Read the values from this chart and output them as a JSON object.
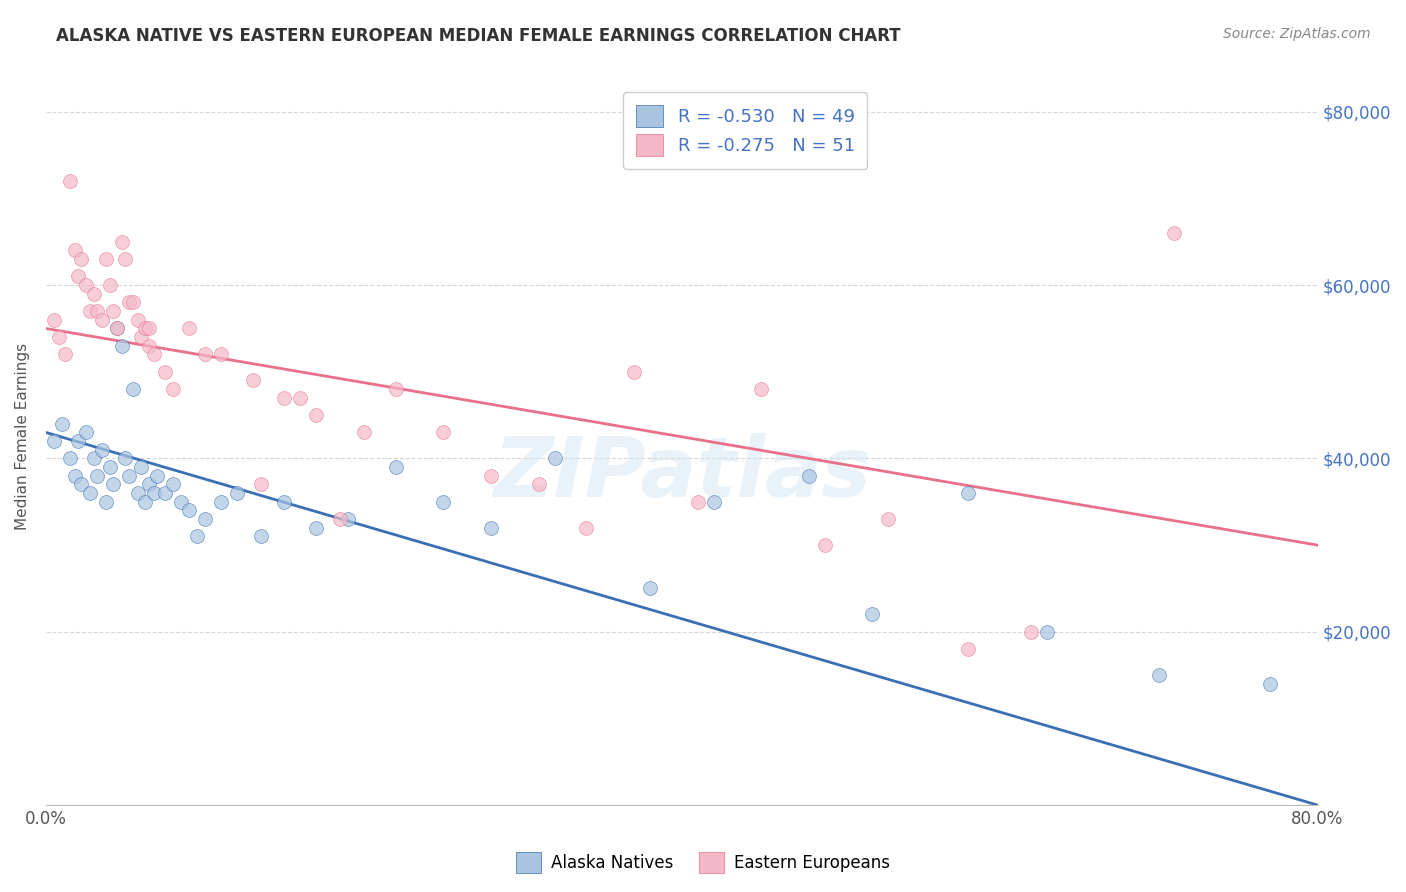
{
  "title": "ALASKA NATIVE VS EASTERN EUROPEAN MEDIAN FEMALE EARNINGS CORRELATION CHART",
  "source": "Source: ZipAtlas.com",
  "ylabel": "Median Female Earnings",
  "watermark": "ZIPatlas",
  "legend_labels": [
    "Alaska Natives",
    "Eastern Europeans"
  ],
  "blue_R": -0.53,
  "blue_N": 49,
  "pink_R": -0.275,
  "pink_N": 51,
  "blue_color": "#aac4e0",
  "pink_color": "#f5b8c8",
  "blue_line_color": "#3a6fb5",
  "pink_line_color": "#e8708a",
  "xlim": [
    0.0,
    0.8
  ],
  "ylim": [
    0,
    85000
  ],
  "yticks": [
    0,
    20000,
    40000,
    60000,
    80000
  ],
  "xticks": [
    0.0,
    0.1,
    0.2,
    0.3,
    0.4,
    0.5,
    0.6,
    0.7,
    0.8
  ],
  "blue_x": [
    0.005,
    0.01,
    0.015,
    0.018,
    0.02,
    0.022,
    0.025,
    0.028,
    0.03,
    0.032,
    0.035,
    0.038,
    0.04,
    0.042,
    0.045,
    0.048,
    0.05,
    0.052,
    0.055,
    0.058,
    0.06,
    0.062,
    0.065,
    0.068,
    0.07,
    0.075,
    0.08,
    0.085,
    0.09,
    0.095,
    0.1,
    0.11,
    0.12,
    0.135,
    0.15,
    0.17,
    0.19,
    0.22,
    0.25,
    0.28,
    0.32,
    0.38,
    0.42,
    0.48,
    0.52,
    0.58,
    0.63,
    0.7,
    0.77
  ],
  "blue_y": [
    42000,
    44000,
    40000,
    38000,
    42000,
    37000,
    43000,
    36000,
    40000,
    38000,
    41000,
    35000,
    39000,
    37000,
    55000,
    53000,
    40000,
    38000,
    48000,
    36000,
    39000,
    35000,
    37000,
    36000,
    38000,
    36000,
    37000,
    35000,
    34000,
    31000,
    33000,
    35000,
    36000,
    31000,
    35000,
    32000,
    33000,
    39000,
    35000,
    32000,
    40000,
    25000,
    35000,
    38000,
    22000,
    36000,
    20000,
    15000,
    14000
  ],
  "pink_x": [
    0.005,
    0.008,
    0.012,
    0.015,
    0.018,
    0.02,
    0.022,
    0.025,
    0.028,
    0.03,
    0.032,
    0.035,
    0.038,
    0.04,
    0.042,
    0.045,
    0.048,
    0.05,
    0.052,
    0.055,
    0.058,
    0.06,
    0.062,
    0.065,
    0.068,
    0.075,
    0.08,
    0.09,
    0.1,
    0.11,
    0.13,
    0.15,
    0.17,
    0.2,
    0.22,
    0.25,
    0.28,
    0.31,
    0.34,
    0.37,
    0.41,
    0.45,
    0.49,
    0.53,
    0.58,
    0.62,
    0.135,
    0.16,
    0.185,
    0.065,
    0.71
  ],
  "pink_y": [
    56000,
    54000,
    52000,
    72000,
    64000,
    61000,
    63000,
    60000,
    57000,
    59000,
    57000,
    56000,
    63000,
    60000,
    57000,
    55000,
    65000,
    63000,
    58000,
    58000,
    56000,
    54000,
    55000,
    53000,
    52000,
    50000,
    48000,
    55000,
    52000,
    52000,
    49000,
    47000,
    45000,
    43000,
    48000,
    43000,
    38000,
    37000,
    32000,
    50000,
    35000,
    48000,
    30000,
    33000,
    18000,
    20000,
    37000,
    47000,
    33000,
    55000,
    66000
  ]
}
